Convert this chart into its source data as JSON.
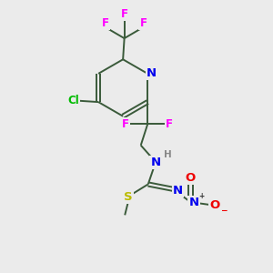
{
  "bg_color": "#ebebeb",
  "bond_color": "#3a5a3a",
  "atom_colors": {
    "F": "#ff00ff",
    "Cl": "#00bb00",
    "N": "#0000ee",
    "O": "#ee0000",
    "S": "#bbbb00",
    "H": "#888888"
  },
  "bond_width": 1.4,
  "font_size": 8.5
}
